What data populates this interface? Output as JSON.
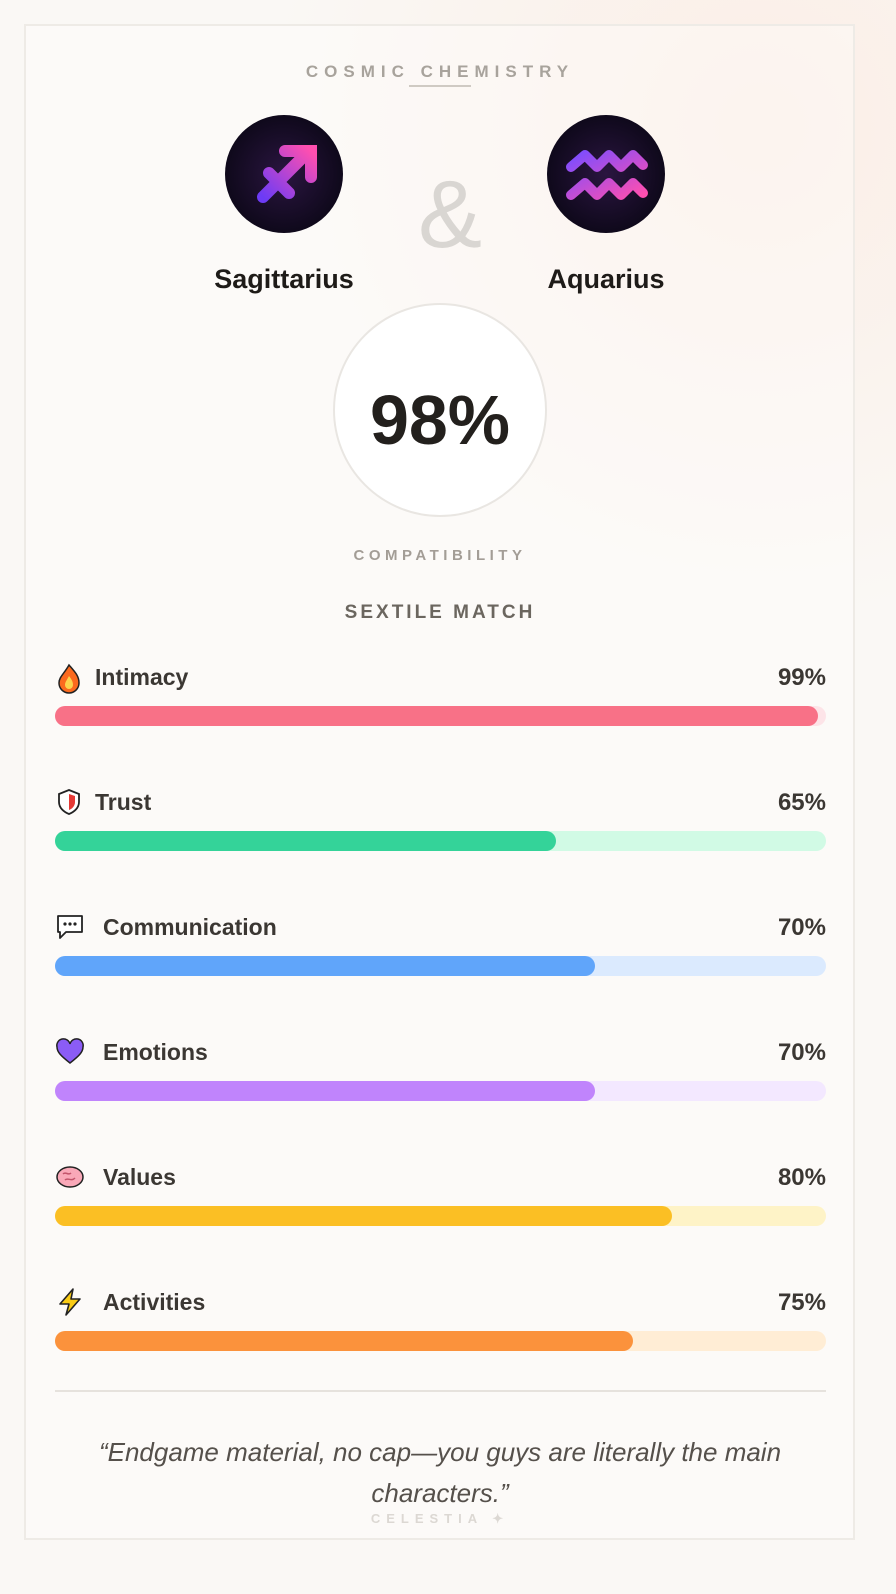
{
  "header": {
    "title": "COSMIC CHEMISTRY"
  },
  "signs": [
    {
      "name": "Sagittarius"
    },
    {
      "name": "Aquarius"
    }
  ],
  "joiner": "&",
  "score": {
    "label": "98%",
    "caption": "COMPATIBILITY"
  },
  "match_type": "SEXTILE MATCH",
  "categories": [
    {
      "label": "Intimacy",
      "value": 99,
      "value_label": "99%",
      "color": "#f87187",
      "track": "#fde4e8"
    },
    {
      "label": "Trust",
      "value": 65,
      "value_label": "65%",
      "color": "#34d399",
      "track": "#d1fae5"
    },
    {
      "label": "Communication",
      "value": 70,
      "value_label": "70%",
      "color": "#60a5fa",
      "track": "#dbeafe"
    },
    {
      "label": "Emotions",
      "value": 70,
      "value_label": "70%",
      "color": "#c084fc",
      "track": "#f3e8ff"
    },
    {
      "label": "Values",
      "value": 80,
      "value_label": "80%",
      "color": "#fbbf24",
      "track": "#fef3c7"
    },
    {
      "label": "Activities",
      "value": 75,
      "value_label": "75%",
      "color": "#fb923c",
      "track": "#ffedd5"
    }
  ],
  "quote": "“Endgame material, no cap—you guys are literally the main characters.”",
  "footer": "CELESTIA ✦"
}
